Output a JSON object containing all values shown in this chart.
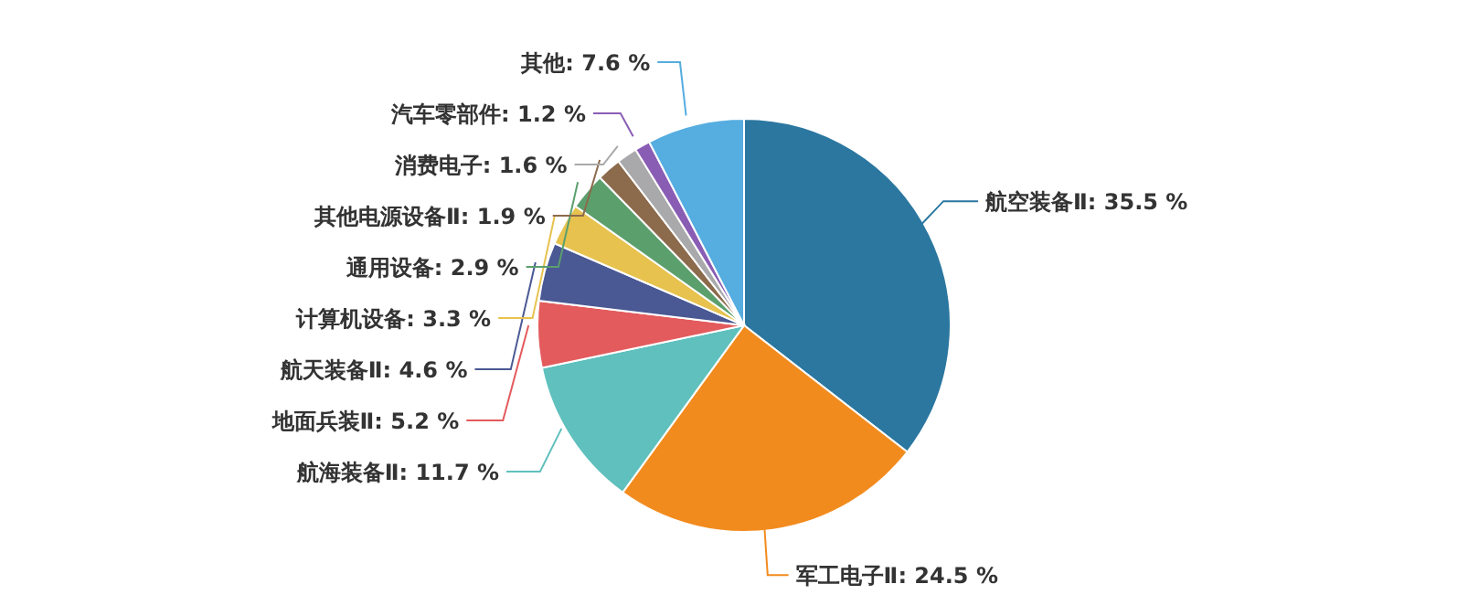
{
  "chart_data": {
    "type": "pie",
    "categories": [
      "航空装备Ⅱ",
      "军工电子Ⅱ",
      "航海装备Ⅱ",
      "地面兵装Ⅱ",
      "航天装备Ⅱ",
      "计算机设备",
      "通用设备",
      "其他电源设备Ⅱ",
      "消费电子",
      "汽车零部件",
      "其他"
    ],
    "values": [
      35.5,
      24.5,
      11.7,
      5.2,
      4.6,
      3.3,
      2.9,
      1.9,
      1.6,
      1.2,
      7.6
    ],
    "value_labels": [
      "35.5 %",
      "24.5 %",
      "11.7 %",
      "5.2 %",
      "4.6 %",
      "3.3 %",
      "2.9 %",
      "1.9 %",
      "1.6 %",
      "1.2 %",
      "7.6 %"
    ],
    "colors": [
      "#2b77a0",
      "#f28b1e",
      "#5fc0bd",
      "#e35b5d",
      "#4a5894",
      "#e7c24e",
      "#5b9f6d",
      "#8c6a4c",
      "#a9a9ab",
      "#8a5db4",
      "#55ade0"
    ],
    "legend": false
  }
}
